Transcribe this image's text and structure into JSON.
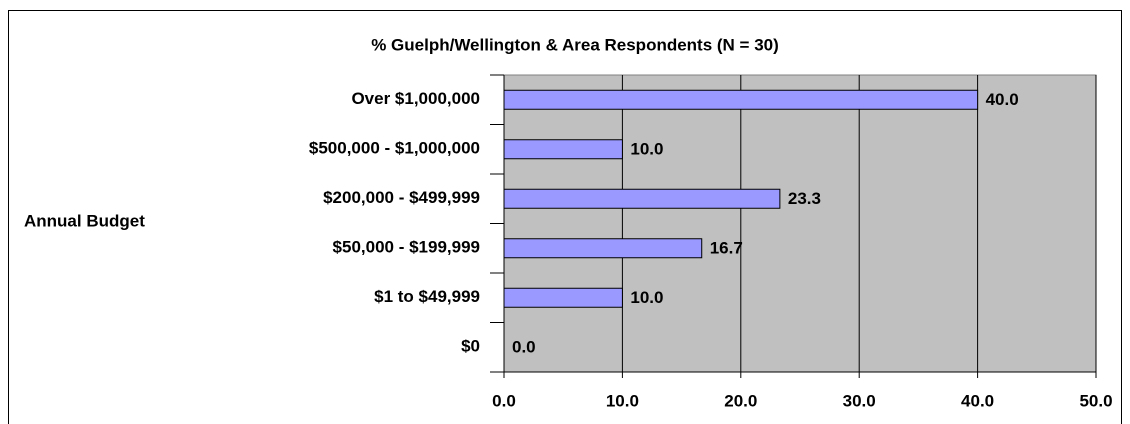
{
  "chart_data": {
    "type": "bar",
    "orientation": "horizontal",
    "subtitle": "% Guelph/Wellington & Area Respondents (N = 30)",
    "y_label": "Annual Budget",
    "categories": [
      "Over $1,000,000",
      "$500,000 - $1,000,000",
      "$200,000 - $499,999",
      "$50,000 - $199,999",
      "$1 to $49,999",
      "$0"
    ],
    "values": [
      40.0,
      10.0,
      23.3,
      16.7,
      10.0,
      0.0
    ],
    "value_labels": [
      "40.0",
      "10.0",
      "23.3",
      "16.7",
      "10.0",
      "0.0"
    ],
    "color": "#9999ff",
    "xlim": [
      0,
      50
    ],
    "xticks": [
      {
        "value": 0,
        "label": "0.0"
      },
      {
        "value": 10,
        "label": "10.0"
      },
      {
        "value": 20,
        "label": "20.0"
      },
      {
        "value": 30,
        "label": "30.0"
      },
      {
        "value": 40,
        "label": "40.0"
      },
      {
        "value": 50,
        "label": "50.0"
      }
    ],
    "grid": true
  }
}
